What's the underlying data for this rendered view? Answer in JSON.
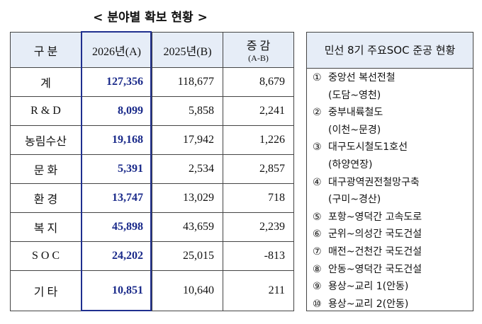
{
  "title": "< 분야별 확보 현황 >",
  "table": {
    "header": [
      "구 분",
      "2026년(A)",
      "2025년(B)",
      [
        "증 감",
        "(A-B)"
      ]
    ],
    "rows": [
      [
        "계",
        "127,356",
        "118,677",
        "8,679"
      ],
      [
        "R & D",
        "8,099",
        "5,858",
        "2,241"
      ],
      [
        "농림수산",
        "19,168",
        "17,942",
        "1,226"
      ],
      [
        "문 화",
        "5,391",
        "2,534",
        "2,857"
      ],
      [
        "환 경",
        "13,747",
        "13,029",
        "718"
      ],
      [
        "복 지",
        "45,898",
        "43,659",
        "2,239"
      ],
      [
        "S O C",
        "24,202",
        "25,015",
        "-813"
      ],
      [
        "기 타",
        "10,851",
        "10,640",
        "211"
      ]
    ]
  },
  "projects": {
    "title": "민선 8기 주요SOC 준공 현황",
    "items": [
      {
        "number": "①",
        "lines": [
          "중앙선 복선전철",
          "(도담~영천)"
        ]
      },
      {
        "number": "②",
        "lines": [
          "중부내륙철도",
          "(이천~문경)"
        ]
      },
      {
        "number": "③",
        "lines": [
          "대구도시철도1호선",
          "(하양연장)"
        ]
      },
      {
        "number": "④",
        "lines": [
          "대구광역권전철망구축",
          "(구미~경산)"
        ]
      },
      {
        "number": "⑤",
        "lines": [
          "포항~영덕간 고속도로"
        ]
      },
      {
        "number": "⑥",
        "lines": [
          "군위~의성간 국도건설"
        ]
      },
      {
        "number": "⑦",
        "lines": [
          "매전~건천간 국도건설"
        ]
      },
      {
        "number": "⑧",
        "lines": [
          "안동~영덕간 국도건설"
        ]
      },
      {
        "number": "⑨",
        "lines": [
          "용상~교리 1(안동)"
        ]
      },
      {
        "number": "⑩",
        "lines": [
          "용상~교리 2(안동)"
        ]
      }
    ]
  }
}
